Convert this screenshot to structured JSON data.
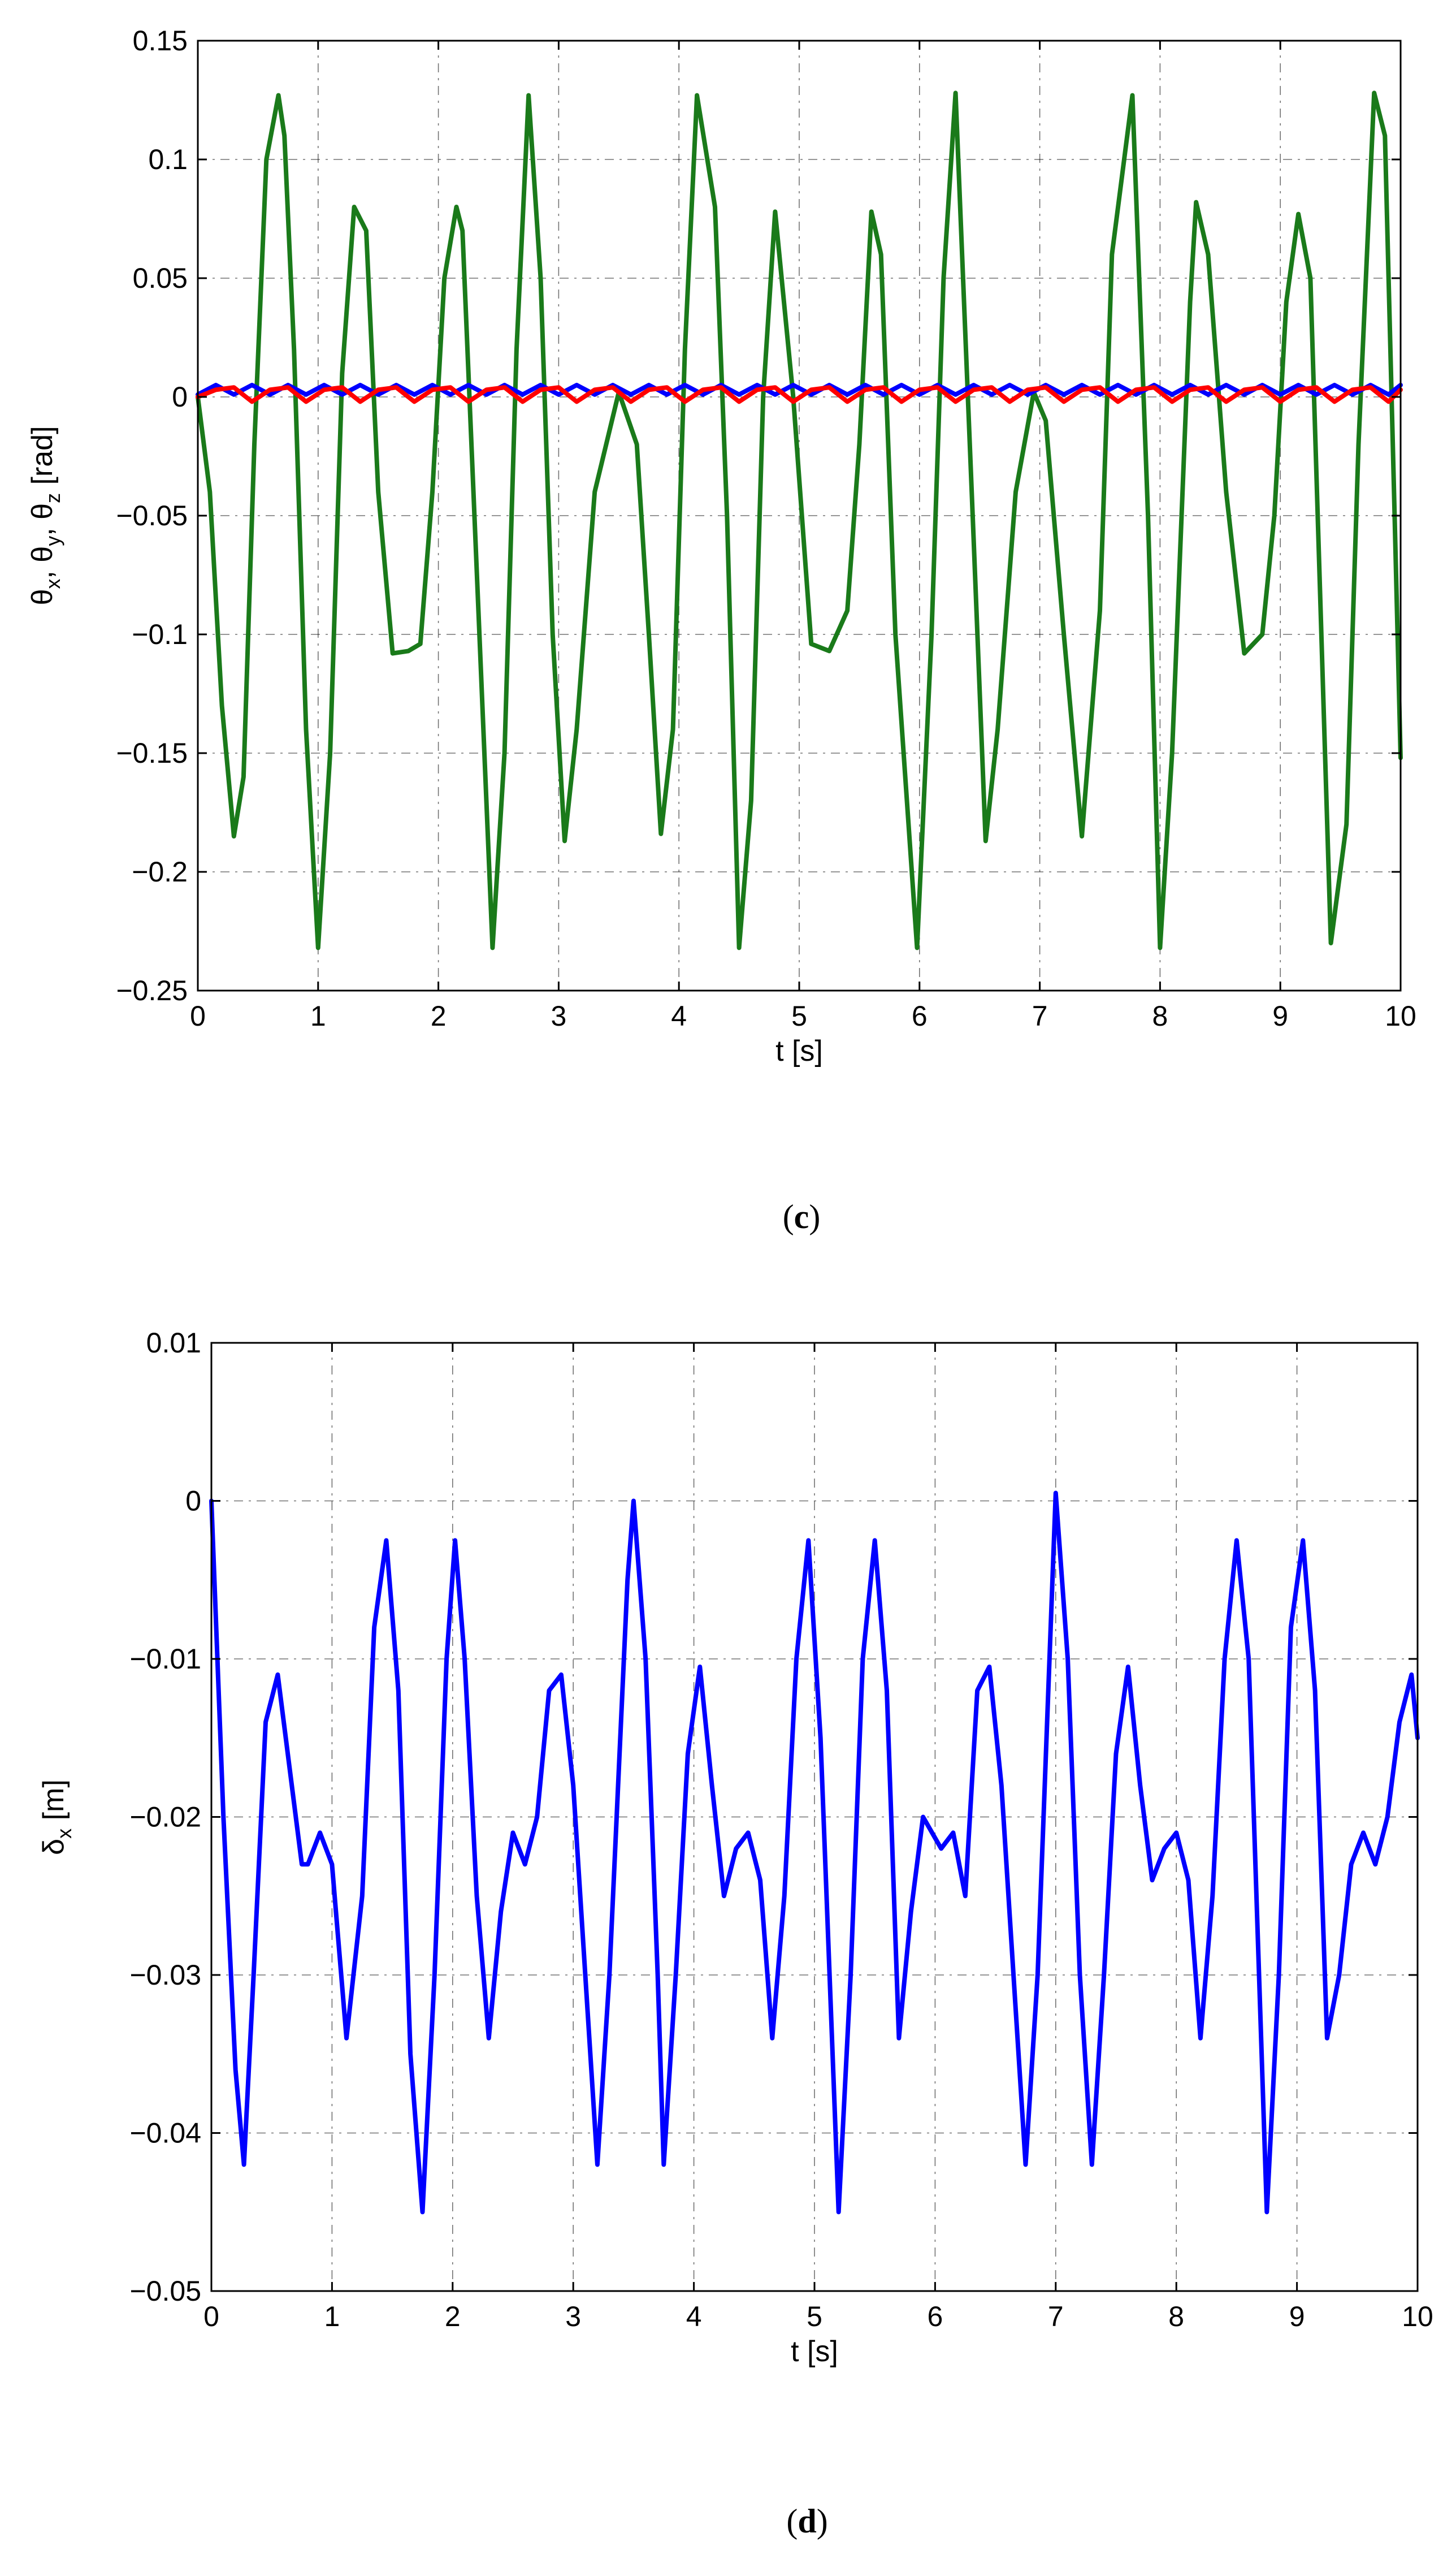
{
  "chart_data": [
    {
      "type": "line",
      "panel_label": "c",
      "xlabel": "t [s]",
      "ylabel_parts": [
        {
          "sym": "θ",
          "sub": "x"
        },
        {
          "sep": ", "
        },
        {
          "sym": "θ",
          "sub": "y"
        },
        {
          "sep": ", "
        },
        {
          "sym": "θ",
          "sub": "z"
        },
        {
          "sep": " [rad]"
        }
      ],
      "xlim": [
        0,
        10
      ],
      "ylim": [
        -0.25,
        0.15
      ],
      "xticks": [
        0,
        1,
        2,
        3,
        4,
        5,
        6,
        7,
        8,
        9,
        10
      ],
      "xtick_labels": [
        "0",
        "1",
        "2",
        "3",
        "4",
        "5",
        "6",
        "7",
        "8",
        "9",
        "10"
      ],
      "yticks": [
        -0.25,
        -0.2,
        -0.15,
        -0.1,
        -0.05,
        0,
        0.05,
        0.1,
        0.15
      ],
      "ytick_labels": [
        "−0.25",
        "−0.2",
        "−0.15",
        "−0.1",
        "−0.05",
        "0",
        "0.05",
        "0.1",
        "0.15"
      ],
      "grid": true,
      "series": [
        {
          "color": "#1a7a1a",
          "x": [
            0,
            0.1,
            0.2,
            0.3,
            0.38,
            0.47,
            0.57,
            0.67,
            0.72,
            0.8,
            0.9,
            1.0,
            1.1,
            1.2,
            1.3,
            1.4,
            1.5,
            1.62,
            1.75,
            1.85,
            1.95,
            2.05,
            2.15,
            2.2,
            2.3,
            2.45,
            2.55,
            2.65,
            2.75,
            2.85,
            2.95,
            3.05,
            3.15,
            3.3,
            3.5,
            3.65,
            3.75,
            3.85,
            3.95,
            4.05,
            4.15,
            4.3,
            4.4,
            4.5,
            4.6,
            4.7,
            4.8,
            4.95,
            5.1,
            5.25,
            5.4,
            5.5,
            5.6,
            5.68,
            5.8,
            5.98,
            6.1,
            6.2,
            6.3,
            6.45,
            6.55,
            6.65,
            6.8,
            6.95,
            7.05,
            7.2,
            7.35,
            7.5,
            7.6,
            7.77,
            7.9,
            8.0,
            8.1,
            8.25,
            8.3,
            8.4,
            8.55,
            8.7,
            8.85,
            8.95,
            9.05,
            9.15,
            9.25,
            9.42,
            9.55,
            9.65,
            9.78,
            9.87,
            9.95,
            10.0
          ],
          "y": [
            0,
            -0.04,
            -0.13,
            -0.185,
            -0.16,
            -0.02,
            0.1,
            0.127,
            0.11,
            0.02,
            -0.14,
            -0.232,
            -0.15,
            0.01,
            0.08,
            0.07,
            -0.04,
            -0.108,
            -0.107,
            -0.104,
            -0.04,
            0.05,
            0.08,
            0.07,
            -0.05,
            -0.232,
            -0.15,
            0.02,
            0.127,
            0.05,
            -0.1,
            -0.187,
            -0.14,
            -0.04,
            0.002,
            -0.02,
            -0.1,
            -0.184,
            -0.14,
            0.02,
            0.127,
            0.08,
            -0.05,
            -0.232,
            -0.17,
            0.0,
            0.078,
            0.0,
            -0.104,
            -0.107,
            -0.09,
            -0.02,
            0.078,
            0.06,
            -0.1,
            -0.232,
            -0.1,
            0.05,
            0.128,
            -0.06,
            -0.187,
            -0.14,
            -0.04,
            0.002,
            -0.01,
            -0.1,
            -0.185,
            -0.09,
            0.06,
            0.127,
            -0.05,
            -0.232,
            -0.15,
            0.04,
            0.082,
            0.06,
            -0.04,
            -0.108,
            -0.1,
            -0.05,
            0.04,
            0.077,
            0.05,
            -0.23,
            -0.18,
            -0.02,
            0.128,
            0.11,
            -0.05,
            -0.152
          ]
        },
        {
          "color": "#0000ff",
          "x": [
            0,
            0.15,
            0.3,
            0.45,
            0.6,
            0.75,
            0.9,
            1.05,
            1.2,
            1.35,
            1.5,
            1.65,
            1.8,
            1.95,
            2.1,
            2.25,
            2.4,
            2.55,
            2.7,
            2.85,
            3.0,
            3.15,
            3.3,
            3.45,
            3.6,
            3.75,
            3.9,
            4.05,
            4.2,
            4.35,
            4.5,
            4.65,
            4.8,
            4.95,
            5.1,
            5.25,
            5.4,
            5.55,
            5.7,
            5.85,
            6.0,
            6.15,
            6.3,
            6.45,
            6.6,
            6.75,
            6.9,
            7.05,
            7.2,
            7.35,
            7.5,
            7.65,
            7.8,
            7.95,
            8.1,
            8.25,
            8.4,
            8.55,
            8.7,
            8.85,
            9.0,
            9.15,
            9.3,
            9.45,
            9.6,
            9.75,
            9.9,
            10.0
          ],
          "y": [
            0.001,
            0.005,
            0.001,
            0.005,
            0.001,
            0.005,
            0.001,
            0.005,
            0.001,
            0.005,
            0.001,
            0.005,
            0.001,
            0.005,
            0.001,
            0.005,
            0.001,
            0.005,
            0.001,
            0.005,
            0.001,
            0.005,
            0.001,
            0.005,
            0.001,
            0.005,
            0.001,
            0.005,
            0.001,
            0.005,
            0.001,
            0.005,
            0.001,
            0.005,
            0.001,
            0.005,
            0.001,
            0.005,
            0.001,
            0.005,
            0.001,
            0.005,
            0.001,
            0.005,
            0.001,
            0.005,
            0.001,
            0.005,
            0.001,
            0.005,
            0.001,
            0.005,
            0.001,
            0.005,
            0.001,
            0.005,
            0.001,
            0.005,
            0.001,
            0.005,
            0.001,
            0.005,
            0.001,
            0.005,
            0.001,
            0.005,
            0.001,
            0.005
          ]
        },
        {
          "color": "#ff0000",
          "x": [
            0,
            0.15,
            0.3,
            0.45,
            0.6,
            0.75,
            0.9,
            1.05,
            1.2,
            1.35,
            1.5,
            1.65,
            1.8,
            1.95,
            2.1,
            2.25,
            2.4,
            2.55,
            2.7,
            2.85,
            3.0,
            3.15,
            3.3,
            3.45,
            3.6,
            3.75,
            3.9,
            4.05,
            4.2,
            4.35,
            4.5,
            4.65,
            4.8,
            4.95,
            5.1,
            5.25,
            5.4,
            5.55,
            5.7,
            5.85,
            6.0,
            6.15,
            6.3,
            6.45,
            6.6,
            6.75,
            6.9,
            7.05,
            7.2,
            7.35,
            7.5,
            7.65,
            7.8,
            7.95,
            8.1,
            8.25,
            8.4,
            8.55,
            8.7,
            8.85,
            9.0,
            9.15,
            9.3,
            9.45,
            9.6,
            9.75,
            9.9,
            10.0
          ],
          "y": [
            0.0,
            0.003,
            0.004,
            -0.002,
            0.003,
            0.004,
            -0.002,
            0.003,
            0.004,
            -0.002,
            0.003,
            0.004,
            -0.002,
            0.003,
            0.004,
            -0.002,
            0.003,
            0.004,
            -0.002,
            0.003,
            0.004,
            -0.002,
            0.003,
            0.004,
            -0.002,
            0.003,
            0.004,
            -0.002,
            0.003,
            0.004,
            -0.002,
            0.003,
            0.004,
            -0.002,
            0.003,
            0.004,
            -0.002,
            0.003,
            0.004,
            -0.002,
            0.003,
            0.004,
            -0.002,
            0.003,
            0.004,
            -0.002,
            0.003,
            0.004,
            -0.002,
            0.003,
            0.004,
            -0.002,
            0.003,
            0.004,
            -0.002,
            0.003,
            0.004,
            -0.002,
            0.003,
            0.004,
            -0.002,
            0.003,
            0.004,
            -0.002,
            0.003,
            0.004,
            -0.002,
            0.003
          ]
        }
      ]
    },
    {
      "type": "line",
      "panel_label": "d",
      "xlabel": "t [s]",
      "ylabel_parts": [
        {
          "sym": "δ",
          "sub": "x"
        },
        {
          "sep": " [m]"
        }
      ],
      "xlim": [
        0,
        10
      ],
      "ylim": [
        -0.05,
        0.01
      ],
      "xticks": [
        0,
        1,
        2,
        3,
        4,
        5,
        6,
        7,
        8,
        9,
        10
      ],
      "xtick_labels": [
        "0",
        "1",
        "2",
        "3",
        "4",
        "5",
        "6",
        "7",
        "8",
        "9",
        "10"
      ],
      "yticks": [
        -0.05,
        -0.04,
        -0.03,
        -0.02,
        -0.01,
        0,
        0.01
      ],
      "ytick_labels": [
        "−0.05",
        "−0.04",
        "−0.03",
        "−0.02",
        "−0.01",
        "0",
        "0.01"
      ],
      "grid": true,
      "series": [
        {
          "color": "#0000ff",
          "x": [
            0,
            0.1,
            0.2,
            0.27,
            0.35,
            0.45,
            0.55,
            0.65,
            0.75,
            0.8,
            0.9,
            1.0,
            1.12,
            1.25,
            1.35,
            1.45,
            1.55,
            1.65,
            1.75,
            1.85,
            1.95,
            2.02,
            2.1,
            2.2,
            2.3,
            2.4,
            2.5,
            2.6,
            2.7,
            2.8,
            2.9,
            3.0,
            3.1,
            3.2,
            3.3,
            3.45,
            3.5,
            3.6,
            3.7,
            3.75,
            3.85,
            3.95,
            4.05,
            4.15,
            4.25,
            4.35,
            4.45,
            4.55,
            4.65,
            4.75,
            4.85,
            4.95,
            5.05,
            5.2,
            5.3,
            5.4,
            5.5,
            5.6,
            5.7,
            5.8,
            5.9,
            6.05,
            6.15,
            6.25,
            6.35,
            6.45,
            6.55,
            6.65,
            6.75,
            6.85,
            7.0,
            7.1,
            7.2,
            7.3,
            7.4,
            7.5,
            7.6,
            7.7,
            7.8,
            7.9,
            8.0,
            8.1,
            8.2,
            8.3,
            8.4,
            8.5,
            8.6,
            8.75,
            8.85,
            8.95,
            9.05,
            9.15,
            9.25,
            9.35,
            9.45,
            9.55,
            9.65,
            9.75,
            9.85,
            9.95,
            10.0
          ],
          "y": [
            0,
            -0.02,
            -0.036,
            -0.042,
            -0.03,
            -0.014,
            -0.011,
            -0.017,
            -0.023,
            -0.023,
            -0.021,
            -0.023,
            -0.034,
            -0.025,
            -0.008,
            -0.0025,
            -0.012,
            -0.035,
            -0.045,
            -0.03,
            -0.01,
            -0.0025,
            -0.01,
            -0.025,
            -0.034,
            -0.026,
            -0.021,
            -0.023,
            -0.02,
            -0.012,
            -0.011,
            -0.018,
            -0.03,
            -0.042,
            -0.03,
            -0.005,
            0,
            -0.01,
            -0.03,
            -0.042,
            -0.03,
            -0.016,
            -0.0105,
            -0.018,
            -0.025,
            -0.022,
            -0.021,
            -0.024,
            -0.034,
            -0.025,
            -0.01,
            -0.0025,
            -0.015,
            -0.045,
            -0.03,
            -0.01,
            -0.0025,
            -0.012,
            -0.034,
            -0.026,
            -0.02,
            -0.022,
            -0.021,
            -0.025,
            -0.012,
            -0.0105,
            -0.018,
            -0.03,
            -0.042,
            -0.03,
            0.0005,
            -0.01,
            -0.03,
            -0.042,
            -0.03,
            -0.016,
            -0.0105,
            -0.018,
            -0.024,
            -0.022,
            -0.021,
            -0.024,
            -0.034,
            -0.025,
            -0.01,
            -0.0025,
            -0.01,
            -0.045,
            -0.03,
            -0.008,
            -0.0025,
            -0.012,
            -0.034,
            -0.03,
            -0.023,
            -0.021,
            -0.023,
            -0.02,
            -0.014,
            -0.011,
            -0.015
          ]
        }
      ]
    }
  ]
}
